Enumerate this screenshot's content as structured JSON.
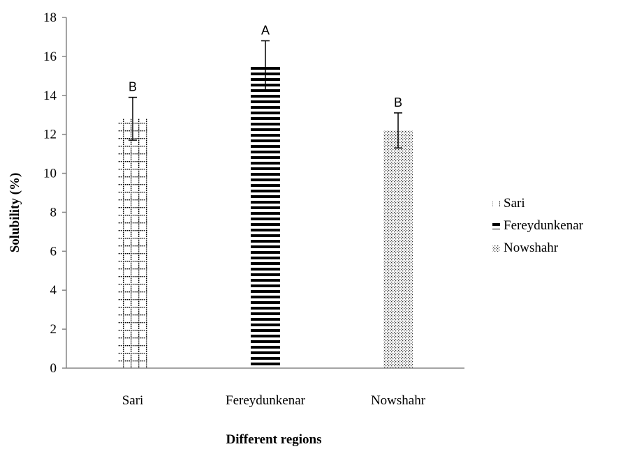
{
  "chart_data": {
    "type": "bar",
    "categories": [
      "Sari",
      "Fereydunkenar",
      "Nowshahr"
    ],
    "series": [
      {
        "name": "Sari",
        "pattern": "grid",
        "value": 12.8,
        "error": 1.1,
        "significance": "B"
      },
      {
        "name": "Fereydunkenar",
        "pattern": "horizontal-stripes",
        "value": 15.5,
        "error": 1.3,
        "significance": "A"
      },
      {
        "name": "Nowshahr",
        "pattern": "dots",
        "value": 12.2,
        "error": 0.9,
        "significance": "B"
      }
    ],
    "xlabel": "Different regions",
    "ylabel": "Solubility (%)",
    "ylim": [
      0,
      18
    ],
    "yticks": [
      "0",
      "2",
      "4",
      "6",
      "8",
      "10",
      "12",
      "14",
      "16",
      "18"
    ],
    "grid": false,
    "legend_position": "right",
    "colors": {
      "bar_pattern": "#000000",
      "axis": "#868686",
      "error_bar": "#000000"
    }
  }
}
